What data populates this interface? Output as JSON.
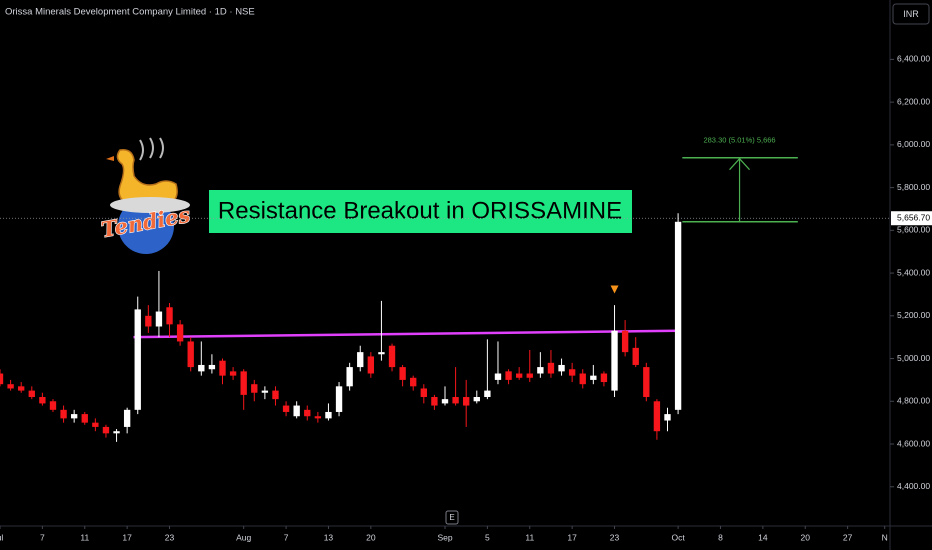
{
  "chart_data": {
    "type": "candlestick",
    "title": "Orissa Minerals Development Company Limited · 1D · NSE",
    "currency": "INR",
    "headline": "Resistance Breakout in ORISSAMINE",
    "logo_text": "Tendies",
    "scale_button": "E",
    "up_color": "#ffffff",
    "down_color": "#f7161b",
    "grid": false,
    "categories": [
      null,
      null,
      null,
      null,
      null,
      null,
      null,
      null,
      null,
      null,
      null,
      null,
      null,
      null,
      null,
      null,
      null,
      null,
      null,
      null,
      null,
      null,
      null,
      null,
      null,
      null,
      null,
      null,
      null,
      null,
      null,
      null,
      null,
      null,
      null,
      null,
      null,
      null,
      null,
      null,
      null,
      null,
      null,
      null,
      null,
      null,
      null,
      null,
      null,
      null,
      null,
      null,
      null,
      null,
      null,
      null,
      null,
      null,
      null,
      null,
      null,
      null,
      null,
      null,
      null
    ],
    "open": [
      4930,
      4880,
      4870,
      4850,
      4820,
      4800,
      4760,
      4720,
      4740,
      4700,
      4680,
      4650,
      4680,
      4760,
      5200,
      5150,
      5240,
      5160,
      5080,
      4940,
      4950,
      4990,
      4940,
      4940,
      4880,
      4840,
      4850,
      4780,
      4730,
      4760,
      4730,
      4720,
      4750,
      4870,
      4960,
      5010,
      5020,
      5060,
      4960,
      4910,
      4860,
      4820,
      4790,
      4820,
      4820,
      4800,
      4820,
      4900,
      4940,
      4930,
      4930,
      4930,
      4980,
      4940,
      4950,
      4930,
      4900,
      4930,
      4850,
      5130,
      5050,
      4960,
      4800,
      4710,
      4760
    ],
    "high": [
      4950,
      4900,
      4890,
      4870,
      4840,
      4810,
      4780,
      4760,
      4750,
      4720,
      4690,
      4670,
      4770,
      5290,
      5250,
      5410,
      5260,
      5180,
      5100,
      5080,
      5020,
      5000,
      4960,
      4950,
      4900,
      4870,
      4870,
      4800,
      4800,
      4780,
      4750,
      4790,
      4890,
      4980,
      5060,
      5030,
      5270,
      5070,
      4970,
      4920,
      4880,
      4830,
      4870,
      4960,
      4900,
      4850,
      5090,
      5080,
      4950,
      4960,
      5040,
      5030,
      5040,
      5000,
      4980,
      4950,
      4970,
      4940,
      5250,
      5180,
      5100,
      4980,
      4810,
      4770,
      5680
    ],
    "low": [
      4870,
      4850,
      4840,
      4810,
      4780,
      4750,
      4700,
      4700,
      4690,
      4660,
      4630,
      4610,
      4650,
      4740,
      5120,
      5100,
      5100,
      5060,
      4940,
      4920,
      4930,
      4880,
      4900,
      4760,
      4800,
      4810,
      4780,
      4730,
      4720,
      4710,
      4700,
      4710,
      4730,
      4850,
      4940,
      4910,
      4990,
      4940,
      4870,
      4850,
      4790,
      4760,
      4780,
      4780,
      4680,
      4790,
      4810,
      4880,
      4880,
      4900,
      4890,
      4910,
      4910,
      4920,
      4890,
      4860,
      4880,
      4870,
      4820,
      5010,
      4960,
      4800,
      4620,
      4660,
      4740
    ],
    "close": [
      4880,
      4860,
      4850,
      4820,
      4790,
      4760,
      4720,
      4740,
      4700,
      4680,
      4650,
      4660,
      4760,
      5230,
      5150,
      5220,
      5160,
      5080,
      4960,
      4970,
      4970,
      4920,
      4920,
      4830,
      4840,
      4850,
      4810,
      4750,
      4780,
      4730,
      4720,
      4750,
      4870,
      4960,
      5030,
      4930,
      5030,
      4960,
      4900,
      4870,
      4820,
      4780,
      4810,
      4790,
      4780,
      4820,
      4850,
      4930,
      4900,
      4910,
      4910,
      4960,
      4930,
      4970,
      4920,
      4880,
      4920,
      4890,
      5130,
      5030,
      4970,
      4820,
      4660,
      4740,
      5640
    ],
    "xlim": [
      0,
      84
    ],
    "xticks": [
      {
        "value": 0,
        "label": "ul"
      },
      {
        "value": 4,
        "label": "7"
      },
      {
        "value": 8,
        "label": "11"
      },
      {
        "value": 12,
        "label": "17"
      },
      {
        "value": 16,
        "label": "23"
      },
      {
        "value": 23,
        "label": "Aug"
      },
      {
        "value": 27,
        "label": "7"
      },
      {
        "value": 31,
        "label": "13"
      },
      {
        "value": 35,
        "label": "20"
      },
      {
        "value": 42,
        "label": "Sep"
      },
      {
        "value": 46,
        "label": "5"
      },
      {
        "value": 50,
        "label": "11"
      },
      {
        "value": 54,
        "label": "17"
      },
      {
        "value": 58,
        "label": "23"
      },
      {
        "value": 64,
        "label": "Oct"
      },
      {
        "value": 68,
        "label": "8"
      },
      {
        "value": 72,
        "label": "14"
      },
      {
        "value": 76,
        "label": "20"
      },
      {
        "value": 80,
        "label": "27"
      },
      {
        "value": 83.5,
        "label": "N"
      }
    ],
    "ylim": [
      4221,
      6678
    ],
    "yticks": [
      {
        "value": 4400,
        "label": "4,400.00"
      },
      {
        "value": 4600,
        "label": "4,600.00"
      },
      {
        "value": 4800,
        "label": "4,800.00"
      },
      {
        "value": 5000,
        "label": "5,000.00"
      },
      {
        "value": 5200,
        "label": "5,200.00"
      },
      {
        "value": 5400,
        "label": "5,400.00"
      },
      {
        "value": 5600,
        "label": "5,600.00"
      },
      {
        "value": 5800,
        "label": "5,800.00"
      },
      {
        "value": 6000,
        "label": "6,000.00"
      },
      {
        "value": 6200,
        "label": "6,200.00"
      },
      {
        "value": 6400,
        "label": "6,400.00"
      }
    ],
    "last_price": {
      "value": 5656.7,
      "label": "5,656.70"
    },
    "resistance_line": {
      "color": "#e040fb",
      "x": [
        12.6,
        64
      ],
      "values": [
        5100,
        5130
      ]
    },
    "projection": {
      "label": "283.30 (5.01%) 5,666",
      "color": "#4caf50",
      "x": [
        64.4,
        75.3
      ],
      "values": [
        5640,
        5940
      ],
      "arrow_x": 69.8
    },
    "signal_marker": {
      "x": 58,
      "value": 5300,
      "color": "#f7931a"
    }
  }
}
